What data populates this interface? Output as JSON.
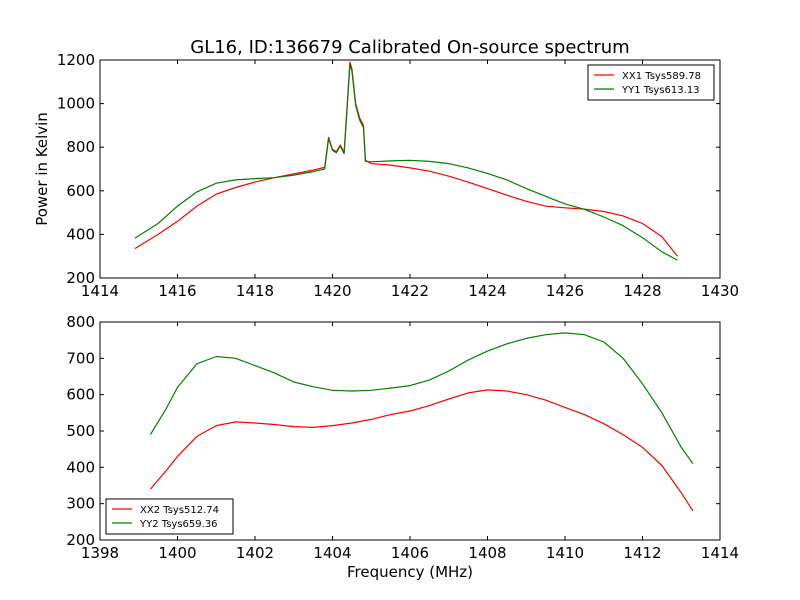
{
  "chart_data": [
    {
      "type": "line",
      "title": "GL16, ID:136679 Calibrated On-source spectrum",
      "xlabel": "",
      "ylabel": "Power in Kelvin",
      "xlim": [
        1414,
        1430
      ],
      "ylim": [
        200,
        1200
      ],
      "xticks": [
        1414,
        1416,
        1418,
        1420,
        1422,
        1424,
        1426,
        1428,
        1430
      ],
      "yticks": [
        200,
        400,
        600,
        800,
        1000,
        1200
      ],
      "legend_position": "top-right",
      "grid": false,
      "series": [
        {
          "name": "XX1 Tsys589.78",
          "color": "#ff0000",
          "points": [
            [
              1414.9,
              335
            ],
            [
              1415.5,
              400
            ],
            [
              1416.0,
              460
            ],
            [
              1416.5,
              530
            ],
            [
              1417.0,
              585
            ],
            [
              1417.5,
              615
            ],
            [
              1418.0,
              640
            ],
            [
              1418.5,
              660
            ],
            [
              1419.0,
              678
            ],
            [
              1419.5,
              695
            ],
            [
              1419.8,
              708
            ],
            [
              1419.9,
              845
            ],
            [
              1420.0,
              790
            ],
            [
              1420.1,
              780
            ],
            [
              1420.2,
              810
            ],
            [
              1420.3,
              775
            ],
            [
              1420.4,
              1050
            ],
            [
              1420.45,
              1190
            ],
            [
              1420.5,
              1160
            ],
            [
              1420.6,
              1000
            ],
            [
              1420.7,
              935
            ],
            [
              1420.8,
              900
            ],
            [
              1420.85,
              740
            ],
            [
              1421.0,
              725
            ],
            [
              1421.5,
              718
            ],
            [
              1422.0,
              705
            ],
            [
              1422.5,
              690
            ],
            [
              1423.0,
              667
            ],
            [
              1423.5,
              640
            ],
            [
              1424.0,
              610
            ],
            [
              1424.5,
              580
            ],
            [
              1425.0,
              552
            ],
            [
              1425.5,
              530
            ],
            [
              1426.0,
              522
            ],
            [
              1426.5,
              516
            ],
            [
              1427.0,
              505
            ],
            [
              1427.5,
              485
            ],
            [
              1428.0,
              450
            ],
            [
              1428.5,
              390
            ],
            [
              1428.9,
              300
            ]
          ]
        },
        {
          "name": "YY1 Tsys613.13",
          "color": "#008000",
          "points": [
            [
              1414.9,
              383
            ],
            [
              1415.5,
              450
            ],
            [
              1416.0,
              530
            ],
            [
              1416.5,
              595
            ],
            [
              1417.0,
              635
            ],
            [
              1417.5,
              650
            ],
            [
              1418.0,
              656
            ],
            [
              1418.5,
              660
            ],
            [
              1419.0,
              672
            ],
            [
              1419.5,
              688
            ],
            [
              1419.8,
              700
            ],
            [
              1419.9,
              840
            ],
            [
              1420.0,
              785
            ],
            [
              1420.1,
              775
            ],
            [
              1420.2,
              805
            ],
            [
              1420.3,
              770
            ],
            [
              1420.4,
              1040
            ],
            [
              1420.45,
              1180
            ],
            [
              1420.5,
              1150
            ],
            [
              1420.6,
              990
            ],
            [
              1420.7,
              925
            ],
            [
              1420.8,
              890
            ],
            [
              1420.85,
              735
            ],
            [
              1421.0,
              733
            ],
            [
              1421.5,
              737
            ],
            [
              1422.0,
              740
            ],
            [
              1422.5,
              735
            ],
            [
              1423.0,
              725
            ],
            [
              1423.5,
              705
            ],
            [
              1424.0,
              680
            ],
            [
              1424.5,
              650
            ],
            [
              1425.0,
              610
            ],
            [
              1425.5,
              575
            ],
            [
              1426.0,
              540
            ],
            [
              1426.5,
              515
            ],
            [
              1427.0,
              480
            ],
            [
              1427.5,
              440
            ],
            [
              1428.0,
              385
            ],
            [
              1428.5,
              320
            ],
            [
              1428.9,
              282
            ]
          ]
        }
      ]
    },
    {
      "type": "line",
      "title": "",
      "xlabel": "Frequency (MHz)",
      "ylabel": "",
      "xlim": [
        1398,
        1414
      ],
      "ylim": [
        200,
        800
      ],
      "xticks": [
        1398,
        1400,
        1402,
        1404,
        1406,
        1408,
        1410,
        1412,
        1414
      ],
      "yticks": [
        200,
        300,
        400,
        500,
        600,
        700,
        800
      ],
      "legend_position": "bottom-left",
      "grid": false,
      "series": [
        {
          "name": "XX2 Tsys512.74",
          "color": "#ff0000",
          "points": [
            [
              1399.3,
              340
            ],
            [
              1399.7,
              390
            ],
            [
              1400.0,
              430
            ],
            [
              1400.5,
              485
            ],
            [
              1401.0,
              515
            ],
            [
              1401.5,
              525
            ],
            [
              1402.0,
              522
            ],
            [
              1402.5,
              518
            ],
            [
              1403.0,
              512
            ],
            [
              1403.5,
              510
            ],
            [
              1404.0,
              515
            ],
            [
              1404.5,
              522
            ],
            [
              1405.0,
              532
            ],
            [
              1405.5,
              545
            ],
            [
              1406.0,
              555
            ],
            [
              1406.5,
              570
            ],
            [
              1407.0,
              588
            ],
            [
              1407.5,
              605
            ],
            [
              1408.0,
              613
            ],
            [
              1408.5,
              610
            ],
            [
              1409.0,
              600
            ],
            [
              1409.5,
              585
            ],
            [
              1410.0,
              565
            ],
            [
              1410.5,
              545
            ],
            [
              1411.0,
              520
            ],
            [
              1411.5,
              490
            ],
            [
              1412.0,
              455
            ],
            [
              1412.5,
              405
            ],
            [
              1413.0,
              330
            ],
            [
              1413.3,
              280
            ]
          ]
        },
        {
          "name": "YY2 Tsys659.36",
          "color": "#008000",
          "points": [
            [
              1399.3,
              490
            ],
            [
              1399.7,
              560
            ],
            [
              1400.0,
              620
            ],
            [
              1400.5,
              685
            ],
            [
              1401.0,
              705
            ],
            [
              1401.5,
              700
            ],
            [
              1402.0,
              680
            ],
            [
              1402.5,
              660
            ],
            [
              1403.0,
              635
            ],
            [
              1403.5,
              622
            ],
            [
              1404.0,
              612
            ],
            [
              1404.5,
              610
            ],
            [
              1405.0,
              612
            ],
            [
              1405.5,
              618
            ],
            [
              1406.0,
              625
            ],
            [
              1406.5,
              640
            ],
            [
              1407.0,
              665
            ],
            [
              1407.5,
              695
            ],
            [
              1408.0,
              720
            ],
            [
              1408.5,
              740
            ],
            [
              1409.0,
              755
            ],
            [
              1409.5,
              765
            ],
            [
              1410.0,
              770
            ],
            [
              1410.5,
              765
            ],
            [
              1411.0,
              745
            ],
            [
              1411.5,
              700
            ],
            [
              1412.0,
              630
            ],
            [
              1412.5,
              550
            ],
            [
              1413.0,
              455
            ],
            [
              1413.3,
              410
            ]
          ]
        }
      ]
    }
  ]
}
